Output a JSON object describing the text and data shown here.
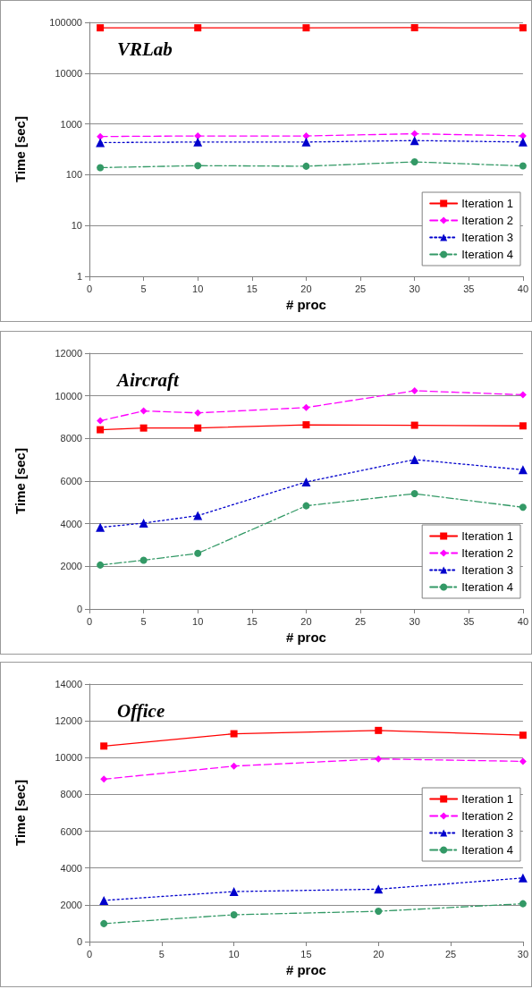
{
  "chart_data": [
    {
      "type": "line",
      "title": "VRLab",
      "xlabel": "# proc",
      "ylabel": "Time [sec]",
      "log": "y",
      "grid": "y",
      "legend": "bottom right",
      "x": [
        1,
        10,
        20,
        30,
        40
      ],
      "xlim": [
        0,
        40
      ],
      "xticks": [
        0,
        5,
        10,
        15,
        20,
        25,
        30,
        35,
        40
      ],
      "ylim": [
        1,
        100000
      ],
      "yticks": [
        1,
        10,
        100,
        1000,
        10000,
        100000
      ],
      "series": [
        {
          "name": "Iteration 1",
          "color": "#ff0000",
          "marker": "square",
          "line_style": "solid",
          "values": [
            78000,
            78000,
            78000,
            78500,
            78000
          ]
        },
        {
          "name": "Iteration 2",
          "color": "#ff00ff",
          "marker": "diamond",
          "line_style": "dashed",
          "values": [
            566,
            580,
            580,
            640,
            580
          ]
        },
        {
          "name": "Iteration 3",
          "color": "#0000cc",
          "marker": "triangle",
          "line_style": "dotted",
          "values": [
            430,
            440,
            440,
            471,
            440
          ]
        },
        {
          "name": "Iteration 4",
          "color": "#339966",
          "marker": "circle",
          "line_style": "dashdot",
          "values": [
            138,
            151,
            147,
            179,
            149
          ]
        }
      ]
    },
    {
      "type": "line",
      "title": "Aircraft",
      "xlabel": "# proc",
      "ylabel": "Time [sec]",
      "grid": "y",
      "legend": "bottom right",
      "x": [
        1,
        5,
        10,
        20,
        30,
        40
      ],
      "xlim": [
        0,
        40
      ],
      "xticks": [
        0,
        5,
        10,
        15,
        20,
        25,
        30,
        35,
        40
      ],
      "ylim": [
        0,
        12000
      ],
      "yticks": [
        0,
        2000,
        4000,
        6000,
        8000,
        10000,
        12000
      ],
      "series": [
        {
          "name": "Iteration 1",
          "color": "#ff0000",
          "marker": "square",
          "line_style": "solid",
          "values": [
            8410,
            8490,
            8490,
            8640,
            8620,
            8590
          ]
        },
        {
          "name": "Iteration 2",
          "color": "#ff00ff",
          "marker": "diamond",
          "line_style": "dashed",
          "values": [
            8830,
            9290,
            9200,
            9450,
            10240,
            10050
          ]
        },
        {
          "name": "Iteration 3",
          "color": "#0000cc",
          "marker": "triangle",
          "line_style": "dotted",
          "values": [
            3830,
            4030,
            4380,
            5960,
            7010,
            6530
          ]
        },
        {
          "name": "Iteration 4",
          "color": "#339966",
          "marker": "circle",
          "line_style": "dashdot",
          "values": [
            2060,
            2290,
            2610,
            4840,
            5410,
            4770
          ]
        }
      ]
    },
    {
      "type": "line",
      "title": "Office",
      "xlabel": "# proc",
      "ylabel": "Time [sec]",
      "grid": "y",
      "legend": "right",
      "x": [
        1,
        10,
        20,
        30
      ],
      "xlim": [
        0,
        30
      ],
      "xticks": [
        0,
        5,
        10,
        15,
        20,
        25,
        30
      ],
      "ylim": [
        0,
        14000
      ],
      "yticks": [
        0,
        2000,
        4000,
        6000,
        8000,
        10000,
        12000,
        14000
      ],
      "series": [
        {
          "name": "Iteration 1",
          "color": "#ff0000",
          "marker": "square",
          "line_style": "solid",
          "values": [
            10630,
            11300,
            11480,
            11220
          ]
        },
        {
          "name": "Iteration 2",
          "color": "#ff00ff",
          "marker": "diamond",
          "line_style": "dashed",
          "values": [
            8830,
            9540,
            9930,
            9800
          ]
        },
        {
          "name": "Iteration 3",
          "color": "#0000cc",
          "marker": "triangle",
          "line_style": "dotted",
          "values": [
            2240,
            2720,
            2850,
            3460
          ]
        },
        {
          "name": "Iteration 4",
          "color": "#339966",
          "marker": "circle",
          "line_style": "dashdot",
          "values": [
            980,
            1460,
            1650,
            2060
          ]
        }
      ]
    }
  ]
}
